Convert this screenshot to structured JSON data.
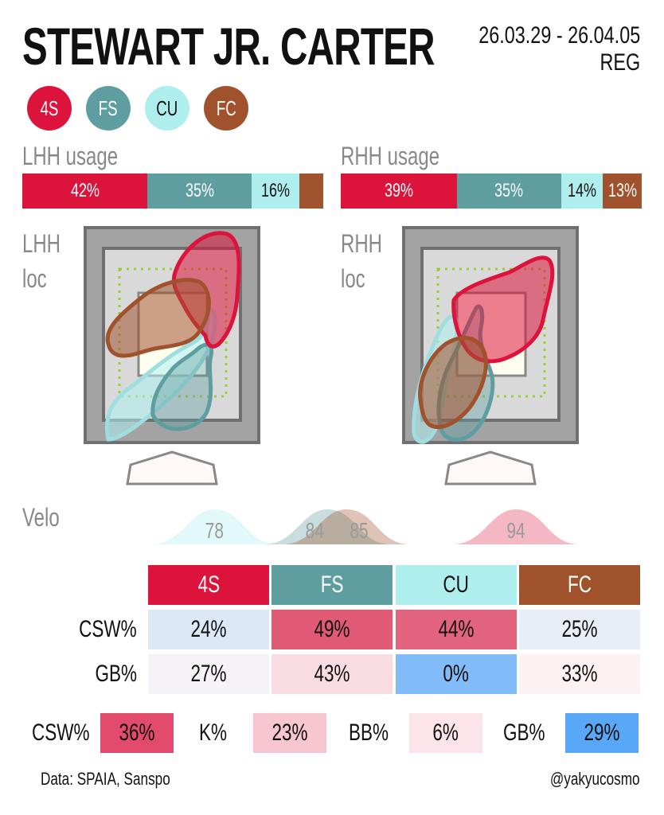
{
  "header": {
    "title": "STEWART JR. CARTER",
    "date_range": "26.03.29 - 26.04.05",
    "season_type": "REG"
  },
  "pitches": [
    {
      "code": "4S",
      "color": "#dc143c",
      "text_color": "#ffffff"
    },
    {
      "code": "FS",
      "color": "#5f9ea0",
      "text_color": "#ffffff"
    },
    {
      "code": "CU",
      "color": "#afeeee",
      "text_color": "#111111"
    },
    {
      "code": "FC",
      "color": "#a0522d",
      "text_color": "#ffffff"
    }
  ],
  "usage": {
    "lhh_label": "LHH usage",
    "rhh_label": "RHH usage",
    "lhh": [
      {
        "pitch": "4S",
        "value": 42,
        "label": "42%"
      },
      {
        "pitch": "FS",
        "value": 35,
        "label": "35%"
      },
      {
        "pitch": "CU",
        "value": 16,
        "label": "16%"
      },
      {
        "pitch": "FC",
        "value": 8,
        "label": ""
      }
    ],
    "rhh": [
      {
        "pitch": "4S",
        "value": 39,
        "label": "39%"
      },
      {
        "pitch": "FS",
        "value": 35,
        "label": "35%"
      },
      {
        "pitch": "CU",
        "value": 14,
        "label": "14%"
      },
      {
        "pitch": "FC",
        "value": 13,
        "label": "13%"
      }
    ]
  },
  "location": {
    "lhh_label_line1": "LHH",
    "lhh_label_line2": "loc",
    "rhh_label_line1": "RHH",
    "rhh_label_line2": "loc"
  },
  "velo": {
    "label": "Velo",
    "range": [
      70,
      100
    ],
    "distributions": [
      {
        "pitch": "CU",
        "peak": 78,
        "label": "78"
      },
      {
        "pitch": "FS",
        "peak": 84,
        "label": "84"
      },
      {
        "pitch": "FC",
        "peak": 85,
        "label": "85"
      },
      {
        "pitch": "4S",
        "peak": 94,
        "label": "94"
      }
    ]
  },
  "pitch_table": {
    "headers": [
      "4S",
      "FS",
      "CU",
      "FC"
    ],
    "rows": [
      {
        "label": "CSW%",
        "cells": [
          {
            "text": "24%",
            "bg": "#dce8f5"
          },
          {
            "text": "49%",
            "bg": "#e05a76"
          },
          {
            "text": "44%",
            "bg": "#e3647f"
          },
          {
            "text": "25%",
            "bg": "#e9eef6"
          }
        ]
      },
      {
        "label": "GB%",
        "cells": [
          {
            "text": "27%",
            "bg": "#f5f3f7"
          },
          {
            "text": "43%",
            "bg": "#fadce3"
          },
          {
            "text": "0%",
            "bg": "#82bcf8"
          },
          {
            "text": "33%",
            "bg": "#fcf1f3"
          }
        ]
      }
    ]
  },
  "summary": [
    {
      "label": "CSW%",
      "value": "36%",
      "bg": "#e24b6b"
    },
    {
      "label": "K%",
      "value": "23%",
      "bg": "#f7c6d1"
    },
    {
      "label": "BB%",
      "value": "6%",
      "bg": "#fce4ea"
    },
    {
      "label": "GB%",
      "value": "29%",
      "bg": "#59a8f7"
    }
  ],
  "footer": {
    "source": "Data: SPAIA, Sanspo",
    "handle": "@yakyucosmo"
  },
  "chart_data": [
    {
      "type": "bar",
      "title": "LHH usage",
      "categories": [
        "4S",
        "FS",
        "CU",
        "FC"
      ],
      "values": [
        42,
        35,
        16,
        8
      ]
    },
    {
      "type": "bar",
      "title": "RHH usage",
      "categories": [
        "4S",
        "FS",
        "CU",
        "FC"
      ],
      "values": [
        39,
        35,
        14,
        13
      ]
    },
    {
      "type": "area",
      "title": "Velo",
      "x_range": [
        70,
        100
      ],
      "series": [
        {
          "name": "CU",
          "peak": 78
        },
        {
          "name": "FS",
          "peak": 84
        },
        {
          "name": "FC",
          "peak": 85
        },
        {
          "name": "4S",
          "peak": 94
        }
      ]
    },
    {
      "type": "table",
      "columns": [
        "4S",
        "FS",
        "CU",
        "FC"
      ],
      "rows": {
        "CSW%": [
          "24%",
          "49%",
          "44%",
          "25%"
        ],
        "GB%": [
          "27%",
          "43%",
          "0%",
          "33%"
        ]
      }
    }
  ]
}
